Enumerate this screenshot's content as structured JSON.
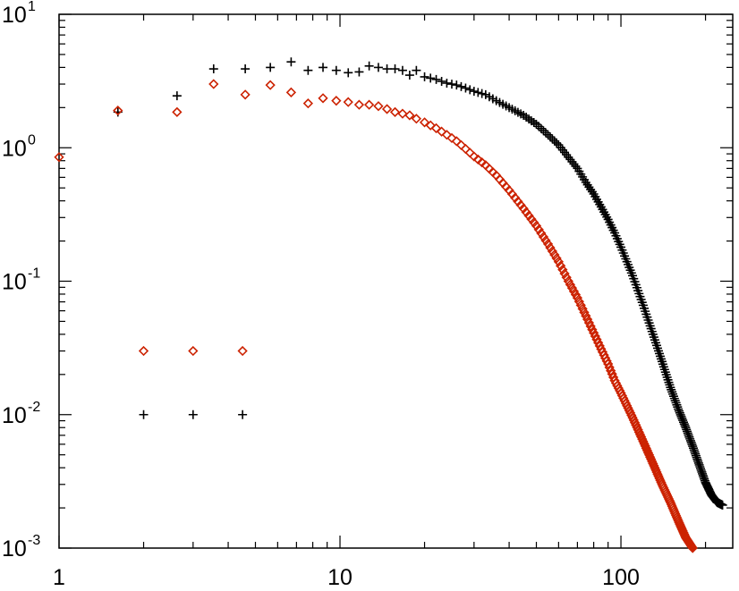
{
  "chart_data": {
    "type": "scatter",
    "title": "",
    "xlabel": "",
    "ylabel": "",
    "x_scale": "log",
    "y_scale": "log",
    "xlim": [
      1,
      250
    ],
    "ylim": [
      0.001,
      10
    ],
    "grid": false,
    "x_tick_labels": [
      {
        "value": 1,
        "label": "1"
      },
      {
        "value": 10,
        "label": "10"
      },
      {
        "value": 100,
        "label": "100"
      }
    ],
    "y_tick_labels": [
      {
        "value": 0.001,
        "base": "10",
        "exp": "-3"
      },
      {
        "value": 0.01,
        "base": "10",
        "exp": "-2"
      },
      {
        "value": 0.1,
        "base": "10",
        "exp": "-1"
      },
      {
        "value": 1,
        "base": "10",
        "exp": "0"
      },
      {
        "value": 10,
        "base": "10",
        "exp": "1"
      }
    ],
    "legend_markers": [
      {
        "marker": "diamond",
        "color": "#cc2200",
        "x": [
          2,
          3,
          4.5
        ],
        "y": [
          0.03,
          0.03,
          0.03
        ]
      },
      {
        "marker": "plus",
        "color": "#000000",
        "x": [
          2,
          3,
          4.5
        ],
        "y": [
          0.01,
          0.01,
          0.01
        ]
      }
    ],
    "series": [
      {
        "marker": "plus",
        "color": "#000000",
        "points": [
          [
            1.62,
            1.85
          ],
          [
            2.63,
            2.45
          ],
          [
            3.55,
            3.9
          ],
          [
            4.6,
            3.9
          ],
          [
            5.65,
            4.0
          ],
          [
            6.7,
            4.4
          ],
          [
            7.7,
            3.8
          ],
          [
            8.7,
            4.0
          ],
          [
            9.7,
            3.8
          ],
          [
            10.7,
            3.65
          ],
          [
            11.7,
            3.7
          ],
          [
            12.7,
            4.1
          ],
          [
            13.7,
            4.0
          ],
          [
            14.7,
            3.9
          ],
          [
            15.7,
            3.9
          ],
          [
            16.7,
            3.8
          ],
          [
            17.7,
            3.5
          ],
          [
            18.7,
            3.8
          ],
          [
            20,
            3.4
          ],
          [
            22,
            3.25
          ],
          [
            24,
            3.05
          ],
          [
            26,
            2.95
          ],
          [
            28,
            2.8
          ],
          [
            30,
            2.65
          ],
          [
            33,
            2.5
          ],
          [
            36,
            2.25
          ],
          [
            40,
            2.0
          ],
          [
            45,
            1.75
          ],
          [
            50,
            1.5
          ],
          [
            55,
            1.25
          ],
          [
            60,
            1.05
          ],
          [
            65,
            0.85
          ],
          [
            70,
            0.7
          ],
          [
            75,
            0.55
          ],
          [
            80,
            0.45
          ],
          [
            85,
            0.36
          ],
          [
            90,
            0.29
          ],
          [
            95,
            0.23
          ],
          [
            100,
            0.18
          ],
          [
            105,
            0.14
          ],
          [
            110,
            0.11
          ],
          [
            115,
            0.085
          ],
          [
            120,
            0.066
          ],
          [
            130,
            0.04
          ],
          [
            140,
            0.025
          ],
          [
            150,
            0.016
          ],
          [
            160,
            0.011
          ],
          [
            170,
            0.008
          ],
          [
            180,
            0.0058
          ],
          [
            190,
            0.0042
          ],
          [
            200,
            0.0031
          ],
          [
            210,
            0.0025
          ],
          [
            220,
            0.0022
          ],
          [
            230,
            0.0021
          ]
        ]
      },
      {
        "marker": "diamond",
        "color": "#cc2200",
        "points": [
          [
            1.0,
            0.85
          ],
          [
            1.62,
            1.9
          ],
          [
            2.63,
            1.85
          ],
          [
            3.55,
            3.0
          ],
          [
            4.6,
            2.5
          ],
          [
            5.65,
            2.95
          ],
          [
            6.7,
            2.6
          ],
          [
            7.7,
            2.15
          ],
          [
            8.7,
            2.35
          ],
          [
            9.7,
            2.25
          ],
          [
            10.7,
            2.2
          ],
          [
            11.7,
            2.1
          ],
          [
            12.7,
            2.1
          ],
          [
            13.7,
            2.05
          ],
          [
            14.7,
            1.95
          ],
          [
            15.7,
            1.85
          ],
          [
            16.7,
            1.8
          ],
          [
            17.7,
            1.75
          ],
          [
            18.7,
            1.65
          ],
          [
            20,
            1.55
          ],
          [
            22,
            1.4
          ],
          [
            24,
            1.25
          ],
          [
            26,
            1.12
          ],
          [
            28,
            0.98
          ],
          [
            30,
            0.86
          ],
          [
            33,
            0.74
          ],
          [
            36,
            0.62
          ],
          [
            40,
            0.48
          ],
          [
            45,
            0.35
          ],
          [
            50,
            0.26
          ],
          [
            55,
            0.19
          ],
          [
            60,
            0.14
          ],
          [
            65,
            0.1
          ],
          [
            70,
            0.075
          ],
          [
            75,
            0.055
          ],
          [
            80,
            0.041
          ],
          [
            85,
            0.031
          ],
          [
            90,
            0.024
          ],
          [
            95,
            0.018
          ],
          [
            100,
            0.0145
          ],
          [
            110,
            0.0095
          ],
          [
            120,
            0.0063
          ],
          [
            130,
            0.0043
          ],
          [
            140,
            0.003
          ],
          [
            150,
            0.0022
          ],
          [
            160,
            0.0016
          ],
          [
            170,
            0.0012
          ],
          [
            180,
            0.001
          ]
        ]
      }
    ]
  }
}
